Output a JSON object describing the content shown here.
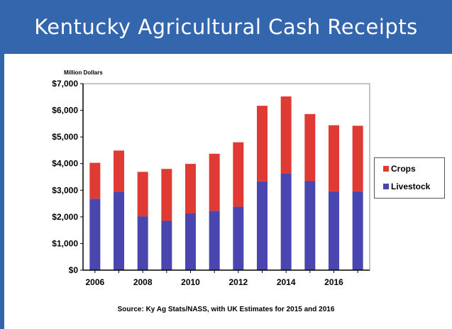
{
  "title": "Kentucky Agricultural Cash Receipts",
  "unit_label": "Million Dollars",
  "source": "Source:  Ky Ag Stats/NASS, with UK Estimates for 2015 and 2016",
  "colors": {
    "crops": "#e03a35",
    "livestock": "#4a46b0",
    "banner": "#3466ad"
  },
  "chart_data": {
    "type": "bar",
    "stacked": true,
    "categories": [
      "2006",
      "2007",
      "2008",
      "2009",
      "2010",
      "2011",
      "2012",
      "2013",
      "2014",
      "2015",
      "2016",
      "2017"
    ],
    "x_tick_labels": [
      "2006",
      "",
      "2008",
      "",
      "2010",
      "",
      "2012",
      "",
      "2014",
      "",
      "2016",
      ""
    ],
    "series": [
      {
        "name": "Livestock",
        "values": [
          2680,
          2950,
          2020,
          1850,
          2130,
          2230,
          2380,
          3330,
          3640,
          3340,
          2960,
          2960
        ]
      },
      {
        "name": "Crops",
        "values": [
          1350,
          1540,
          1670,
          1950,
          1860,
          2140,
          2420,
          2840,
          2880,
          2520,
          2480,
          2460
        ]
      }
    ],
    "y_ticks": [
      "$0",
      "$1,000",
      "$2,000",
      "$3,000",
      "$4,000",
      "$5,000",
      "$6,000",
      "$7,000"
    ],
    "ylim": [
      0,
      7000
    ],
    "grid": false,
    "legend": "right",
    "legend_entries": [
      "Crops",
      "Livestock"
    ]
  }
}
